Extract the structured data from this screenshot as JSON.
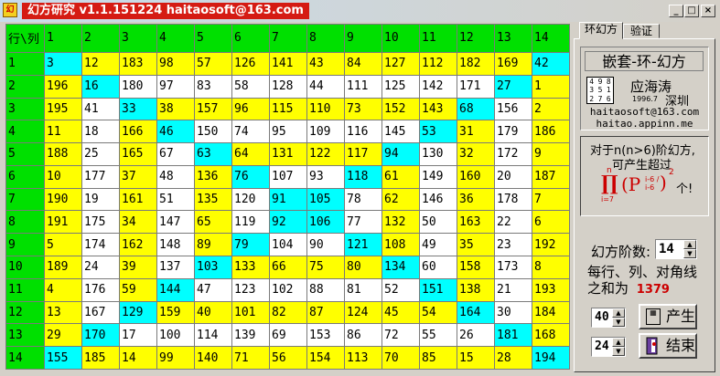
{
  "window": {
    "title": "幻方研究 v1.1.151224 haitaosoft@163.com",
    "min_glyph": "_",
    "max_glyph": "□",
    "close_glyph": "×"
  },
  "grid": {
    "corner_label": "行\\列",
    "col_headers": [
      "1",
      "2",
      "3",
      "4",
      "5",
      "6",
      "7",
      "8",
      "9",
      "10",
      "11",
      "12",
      "13",
      "14"
    ],
    "rows": [
      {
        "label": "1",
        "values": [
          3,
          12,
          183,
          98,
          57,
          126,
          141,
          43,
          84,
          127,
          112,
          182,
          169,
          42
        ],
        "colors": [
          "c",
          "y",
          "y",
          "y",
          "y",
          "y",
          "y",
          "y",
          "y",
          "y",
          "y",
          "y",
          "y",
          "c"
        ]
      },
      {
        "label": "2",
        "values": [
          196,
          16,
          180,
          97,
          83,
          58,
          128,
          44,
          111,
          125,
          142,
          171,
          27,
          1
        ],
        "colors": [
          "y",
          "c",
          "w",
          "w",
          "w",
          "w",
          "w",
          "w",
          "w",
          "w",
          "w",
          "w",
          "c",
          "y"
        ]
      },
      {
        "label": "3",
        "values": [
          195,
          41,
          33,
          38,
          157,
          96,
          115,
          110,
          73,
          152,
          143,
          68,
          156,
          2
        ],
        "colors": [
          "y",
          "w",
          "c",
          "y",
          "y",
          "y",
          "y",
          "y",
          "y",
          "y",
          "y",
          "c",
          "w",
          "y"
        ]
      },
      {
        "label": "4",
        "values": [
          11,
          18,
          166,
          46,
          150,
          74,
          95,
          109,
          116,
          145,
          53,
          31,
          179,
          186
        ],
        "colors": [
          "y",
          "w",
          "y",
          "c",
          "w",
          "w",
          "w",
          "w",
          "w",
          "w",
          "c",
          "y",
          "w",
          "y"
        ]
      },
      {
        "label": "5",
        "values": [
          188,
          25,
          165,
          67,
          63,
          64,
          131,
          122,
          117,
          94,
          130,
          32,
          172,
          9
        ],
        "colors": [
          "y",
          "w",
          "y",
          "w",
          "c",
          "y",
          "y",
          "y",
          "y",
          "c",
          "w",
          "y",
          "w",
          "y"
        ]
      },
      {
        "label": "6",
        "values": [
          10,
          177,
          37,
          48,
          136,
          76,
          107,
          93,
          118,
          61,
          149,
          160,
          20,
          187
        ],
        "colors": [
          "y",
          "w",
          "y",
          "w",
          "y",
          "c",
          "w",
          "w",
          "c",
          "y",
          "w",
          "y",
          "w",
          "y"
        ]
      },
      {
        "label": "7",
        "values": [
          190,
          19,
          161,
          51,
          135,
          120,
          91,
          105,
          78,
          62,
          146,
          36,
          178,
          7
        ],
        "colors": [
          "y",
          "w",
          "y",
          "w",
          "y",
          "w",
          "c",
          "c",
          "w",
          "y",
          "w",
          "y",
          "w",
          "y"
        ]
      },
      {
        "label": "8",
        "values": [
          191,
          175,
          34,
          147,
          65,
          119,
          92,
          106,
          77,
          132,
          50,
          163,
          22,
          6
        ],
        "colors": [
          "y",
          "w",
          "y",
          "w",
          "y",
          "w",
          "c",
          "c",
          "w",
          "y",
          "w",
          "y",
          "w",
          "y"
        ]
      },
      {
        "label": "9",
        "values": [
          5,
          174,
          162,
          148,
          89,
          79,
          104,
          90,
          121,
          108,
          49,
          35,
          23,
          192
        ],
        "colors": [
          "y",
          "w",
          "y",
          "w",
          "y",
          "c",
          "w",
          "w",
          "c",
          "y",
          "w",
          "y",
          "w",
          "y"
        ]
      },
      {
        "label": "10",
        "values": [
          189,
          24,
          39,
          137,
          103,
          133,
          66,
          75,
          80,
          134,
          60,
          158,
          173,
          8
        ],
        "colors": [
          "y",
          "w",
          "y",
          "w",
          "c",
          "y",
          "y",
          "y",
          "y",
          "c",
          "w",
          "y",
          "w",
          "y"
        ]
      },
      {
        "label": "11",
        "values": [
          4,
          176,
          59,
          144,
          47,
          123,
          102,
          88,
          81,
          52,
          151,
          138,
          21,
          193
        ],
        "colors": [
          "y",
          "w",
          "y",
          "c",
          "w",
          "w",
          "w",
          "w",
          "w",
          "w",
          "c",
          "y",
          "w",
          "y"
        ]
      },
      {
        "label": "12",
        "values": [
          13,
          167,
          129,
          159,
          40,
          101,
          82,
          87,
          124,
          45,
          54,
          164,
          30,
          184
        ],
        "colors": [
          "y",
          "w",
          "c",
          "y",
          "y",
          "y",
          "y",
          "y",
          "y",
          "y",
          "y",
          "c",
          "w",
          "y"
        ]
      },
      {
        "label": "13",
        "values": [
          29,
          170,
          17,
          100,
          114,
          139,
          69,
          153,
          86,
          72,
          55,
          26,
          181,
          168
        ],
        "colors": [
          "y",
          "c",
          "w",
          "w",
          "w",
          "w",
          "w",
          "w",
          "w",
          "w",
          "w",
          "w",
          "c",
          "y"
        ]
      },
      {
        "label": "14",
        "values": [
          155,
          185,
          14,
          99,
          140,
          71,
          56,
          154,
          113,
          70,
          85,
          15,
          28,
          194
        ],
        "colors": [
          "c",
          "y",
          "y",
          "y",
          "y",
          "y",
          "y",
          "y",
          "y",
          "y",
          "y",
          "y",
          "y",
          "c"
        ]
      }
    ]
  },
  "panel": {
    "tabs": [
      {
        "label": "环幻方"
      },
      {
        "label": "验证"
      }
    ],
    "box_title": "嵌套-环-幻方",
    "logo_digits": [
      "4",
      "9",
      "8",
      "3",
      "5",
      "1",
      "2",
      "7",
      "6"
    ],
    "author": "应海涛",
    "author_date": "1996.7",
    "author_city": "深圳",
    "email": "haitaosoft@163.com",
    "site": "haitao.appinn.me",
    "info_line1": "对于n(n>6)阶幻方,",
    "info_line2": "可产生超过",
    "formula_pi": "∏",
    "formula_top": "n",
    "formula_bot": "i=7",
    "formula_p": "(P",
    "formula_frac": "i-6 / i-6",
    "formula_exp": "2",
    "formula_tail": "个!",
    "order_label": "幻方阶数:",
    "order_value": "14",
    "sum_line1": "每行、列、对角线",
    "sum_line2_prefix": "之和为",
    "sum_value": "1379",
    "spin1_value": "40",
    "spin2_value": "24",
    "generate_label": "产生",
    "exit_label": "结束"
  }
}
